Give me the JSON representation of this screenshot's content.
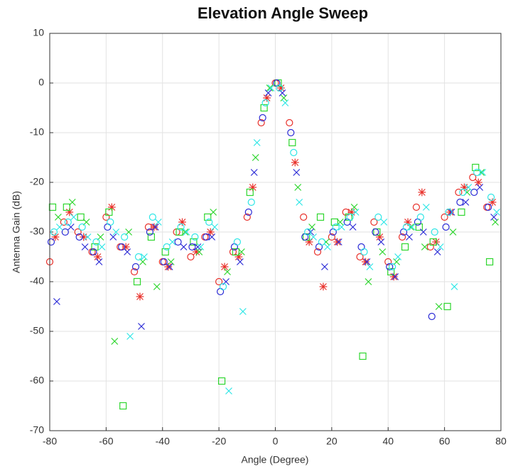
{
  "chart_data": {
    "type": "scatter",
    "title": "Elevation Angle Sweep",
    "x_label": "Angle (Degree)",
    "y_label": "Antenna Gain (dB)",
    "xlim": [
      -80,
      80
    ],
    "xticks": [
      -80,
      -60,
      -40,
      -20,
      0,
      20,
      40,
      60,
      80
    ],
    "ylim": [
      -70,
      10
    ],
    "yticks": [
      -70,
      -60,
      -50,
      -40,
      -30,
      -20,
      -10,
      0,
      10
    ],
    "grid": true,
    "series": [
      {
        "color": "#e8302a",
        "marker": "circle",
        "x": [
          -80,
          -75,
          -70,
          -65,
          -60,
          -55,
          -50,
          -45,
          -40,
          -35,
          -30,
          -25,
          -20,
          -15,
          -10,
          -5,
          0,
          5,
          10,
          15,
          20,
          25,
          30,
          35,
          40,
          45,
          50,
          55,
          60,
          65,
          70,
          75
        ],
        "values": [
          -36,
          -28,
          -30,
          -34,
          -27,
          -33,
          -38,
          -29,
          -36,
          -30,
          -35,
          -31,
          -40,
          -34,
          -27,
          -8,
          0,
          -8,
          -27,
          -34,
          -31,
          -26,
          -35,
          -28,
          -36,
          -31,
          -25,
          -33,
          -27,
          -22,
          -19,
          -25
        ]
      },
      {
        "color": "#e8302a",
        "marker": "star",
        "x": [
          -78,
          -73,
          -68,
          -63,
          -58,
          -53,
          -48,
          -43,
          -38,
          -33,
          -28,
          -23,
          -18,
          -13,
          -8,
          -3,
          2,
          7,
          12,
          17,
          22,
          27,
          32,
          37,
          42,
          47,
          52,
          57,
          62,
          67,
          72,
          77
        ],
        "values": [
          -31,
          -26,
          -31,
          -35,
          -25,
          -33,
          -43,
          -29,
          -37,
          -28,
          -34,
          -30,
          -37,
          -35,
          -21,
          -3,
          -1,
          -16,
          -32,
          -41,
          -32,
          -26,
          -36,
          -31,
          -39,
          -28,
          -22,
          -32,
          -26,
          -21,
          -20,
          -24
        ]
      },
      {
        "color": "#2ed62e",
        "marker": "square",
        "x": [
          -79,
          -74,
          -69,
          -64,
          -59,
          -54,
          -49,
          -44,
          -39,
          -34,
          -29,
          -24,
          -19,
          -14,
          -9,
          -4,
          1,
          6,
          11,
          16,
          21,
          26,
          31,
          36,
          41,
          46,
          51,
          56,
          61,
          66,
          71,
          76
        ],
        "values": [
          -25,
          -25,
          -27,
          -33,
          -26,
          -65,
          -40,
          -31,
          -34,
          -30,
          -32,
          -27,
          -60,
          -34,
          -22,
          -5,
          0,
          -12,
          -31,
          -27,
          -28,
          -27,
          -55,
          -30,
          -38,
          -33,
          -29,
          -32,
          -45,
          -26,
          -17,
          -36
        ]
      },
      {
        "color": "#2ed62e",
        "marker": "cross",
        "x": [
          -77,
          -72,
          -67,
          -62,
          -57,
          -52,
          -47,
          -42,
          -37,
          -32,
          -27,
          -22,
          -17,
          -12,
          -7,
          -2,
          3,
          8,
          13,
          18,
          23,
          28,
          33,
          38,
          43,
          48,
          53,
          58,
          63,
          68,
          73,
          78
        ],
        "values": [
          -27,
          -24,
          -28,
          -31,
          -52,
          -30,
          -36,
          -41,
          -36,
          -30,
          -34,
          -26,
          -38,
          -34,
          -15,
          -1,
          -3,
          -21,
          -29,
          -32,
          -28,
          -25,
          -40,
          -34,
          -36,
          -29,
          -33,
          -45,
          -30,
          -22,
          -18,
          -28
        ]
      },
      {
        "color": "#2b2bd6",
        "marker": "circle",
        "x": [
          -79.5,
          -74.5,
          -69.5,
          -64.5,
          -59.5,
          -54.5,
          -49.5,
          -44.5,
          -39.5,
          -34.5,
          -29.5,
          -24.5,
          -19.5,
          -14.5,
          -9.5,
          -4.5,
          0.5,
          5.5,
          10.5,
          15.5,
          20.5,
          25.5,
          30.5,
          35.5,
          40.5,
          45.5,
          50.5,
          55.5,
          60.5,
          65.5,
          70.5,
          75.5
        ],
        "values": [
          -32,
          -30,
          -31,
          -34,
          -29,
          -33,
          -37,
          -30,
          -36,
          -32,
          -33,
          -31,
          -42,
          -33,
          -26,
          -7,
          0,
          -10,
          -31,
          -33,
          -30,
          -28,
          -33,
          -30,
          -37,
          -30,
          -28,
          -47,
          -29,
          -24,
          -22,
          -25
        ]
      },
      {
        "color": "#2b2bd6",
        "marker": "cross",
        "x": [
          -77.5,
          -72.5,
          -67.5,
          -62.5,
          -57.5,
          -52.5,
          -47.5,
          -42.5,
          -37.5,
          -32.5,
          -27.5,
          -22.5,
          -17.5,
          -12.5,
          -7.5,
          -2.5,
          2.5,
          7.5,
          12.5,
          17.5,
          22.5,
          27.5,
          32.5,
          37.5,
          42.5,
          47.5,
          52.5,
          57.5,
          62.5,
          67.5,
          72.5,
          77.5
        ],
        "values": [
          -44,
          -29,
          -33,
          -36,
          -31,
          -34,
          -49,
          -29,
          -37,
          -33,
          -33,
          -31,
          -40,
          -36,
          -18,
          -2,
          -2,
          -18,
          -30,
          -37,
          -32,
          -29,
          -36,
          -32,
          -39,
          -31,
          -30,
          -34,
          -26,
          -24,
          -21,
          -27
        ]
      },
      {
        "color": "#2ee6e6",
        "marker": "circle",
        "x": [
          -78.5,
          -73.5,
          -68.5,
          -63.5,
          -58.5,
          -53.5,
          -48.5,
          -43.5,
          -38.5,
          -33.5,
          -28.5,
          -23.5,
          -18.5,
          -13.5,
          -8.5,
          -3.5,
          1.5,
          6.5,
          11.5,
          16.5,
          21.5,
          26.5,
          31.5,
          36.5,
          41.5,
          46.5,
          51.5,
          56.5,
          61.5,
          66.5,
          71.5,
          76.5
        ],
        "values": [
          -30,
          -28,
          -29,
          -32,
          -28,
          -31,
          -35,
          -27,
          -33,
          -29,
          -31,
          -28,
          -41,
          -32,
          -24,
          -4,
          -1,
          -14,
          -30,
          -32,
          -29,
          -27,
          -34,
          -27,
          -37,
          -29,
          -27,
          -30,
          -26,
          -22,
          -18,
          -23
        ]
      },
      {
        "color": "#2ee6e6",
        "marker": "cross",
        "x": [
          -76.5,
          -71.5,
          -66.5,
          -61.5,
          -56.5,
          -51.5,
          -46.5,
          -41.5,
          -36.5,
          -31.5,
          -26.5,
          -21.5,
          -16.5,
          -11.5,
          -6.5,
          -1.5,
          3.5,
          8.5,
          13.5,
          18.5,
          23.5,
          28.5,
          33.5,
          38.5,
          43.5,
          48.5,
          53.5,
          58.5,
          63.5,
          68.5,
          73.5,
          78.5
        ],
        "values": [
          -29,
          -27,
          -31,
          -33,
          -30,
          -51,
          -35,
          -28,
          -32,
          -30,
          -33,
          -29,
          -62,
          -46,
          -12,
          -1,
          -4,
          -24,
          -31,
          -33,
          -29,
          -26,
          -37,
          -28,
          -35,
          -29,
          -25,
          -33,
          -41,
          -21,
          -18,
          -26
        ]
      }
    ]
  }
}
